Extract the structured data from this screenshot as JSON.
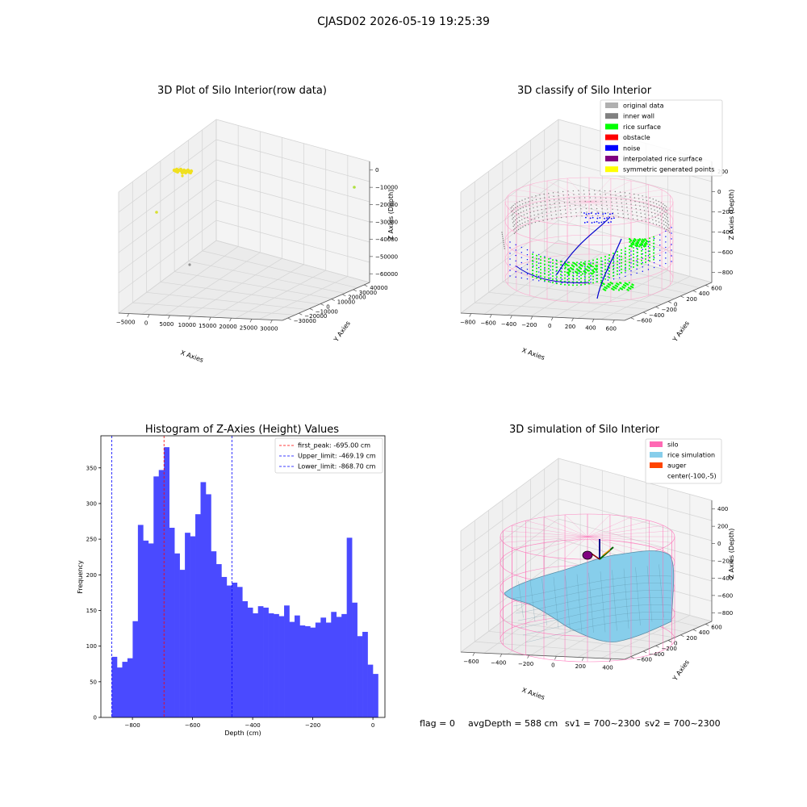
{
  "figure": {
    "suptitle": "CJASD02 2026-05-19 19:25:39",
    "status": {
      "flag": "flag = 0",
      "avg_depth": "avgDepth = 588 cm",
      "sv1": "sv1 = 700~2300",
      "sv2": "sv2 = 700~2300"
    }
  },
  "chart_data": [
    {
      "type": "scatter",
      "panel": "raw",
      "title": "3D Plot of Silo Interior(row data)",
      "xlabel": "X Axies",
      "ylabel": "Y Axies",
      "zlabel": "Z Axies (Depth)",
      "x_ticks": [
        "-5000",
        "0",
        "5000",
        "10000",
        "15000",
        "20000",
        "25000",
        "30000"
      ],
      "y_ticks": [
        "-30000",
        "-20000",
        "-10000",
        "0",
        "10000",
        "20000",
        "30000",
        "40000"
      ],
      "z_ticks": [
        "0",
        "-10000",
        "-20000",
        "-30000",
        "-40000",
        "-50000",
        "-60000"
      ],
      "colors": {
        "points": "#f0e020",
        "outlier": "#b0e040"
      }
    },
    {
      "type": "scatter",
      "panel": "classify",
      "title": "3D classify of Silo Interior",
      "xlabel": "X Axies",
      "ylabel": "Y Axies",
      "zlabel": "Z Axies (Depth)",
      "x_ticks": [
        "-800",
        "-600",
        "-400",
        "-200",
        "0",
        "200",
        "400",
        "600"
      ],
      "y_ticks": [
        "-600",
        "-400",
        "-200",
        "0",
        "200",
        "400",
        "600"
      ],
      "z_ticks": [
        "200",
        "0",
        "-200",
        "-400",
        "-600",
        "-800"
      ],
      "legend": [
        {
          "label": "original data",
          "color": "#b0b0b0"
        },
        {
          "label": "inner wall",
          "color": "#808080"
        },
        {
          "label": "rice surface",
          "color": "#00ff00"
        },
        {
          "label": "obstacle",
          "color": "#ff0000"
        },
        {
          "label": "noise",
          "color": "#0000ff"
        },
        {
          "label": "interpolated rice surface",
          "color": "#800080"
        },
        {
          "label": "symmetric generated points",
          "color": "#ffff00"
        }
      ]
    },
    {
      "type": "bar",
      "panel": "histogram",
      "title": "Histogram of Z-Axies (Height) Values",
      "xlabel": "Depth (cm)",
      "ylabel": "Frequency",
      "xlim": [
        -905,
        40
      ],
      "ylim": [
        0,
        395
      ],
      "x_ticks": [
        -800,
        -600,
        -400,
        -200,
        0
      ],
      "x_tick_labels": [
        "−800",
        "−600",
        "−400",
        "−200",
        "0"
      ],
      "y_ticks": [
        0,
        50,
        100,
        150,
        200,
        250,
        300,
        350
      ],
      "bin_start": -868.7,
      "bin_width": 17.37,
      "values": [
        85,
        70,
        78,
        83,
        135,
        270,
        248,
        244,
        338,
        347,
        379,
        266,
        230,
        207,
        259,
        254,
        285,
        330,
        313,
        233,
        215,
        197,
        185,
        189,
        183,
        163,
        154,
        146,
        156,
        154,
        146,
        145,
        142,
        157,
        134,
        143,
        129,
        128,
        126,
        133,
        140,
        133,
        148,
        141,
        145,
        252,
        161,
        114,
        120,
        74,
        61
      ],
      "bar_color": "#4a4aff",
      "vlines": [
        {
          "x": -695.0,
          "label": "first_peak: -695.00 cm",
          "color": "#ff0000"
        },
        {
          "x": -469.19,
          "label": "Upper_limit: -469.19 cm",
          "color": "#0000ff"
        },
        {
          "x": -868.7,
          "label": "Lower_limit: -868.70 cm",
          "color": "#0000ff"
        }
      ]
    },
    {
      "type": "surface",
      "panel": "simulation",
      "title": "3D simulation of Silo Interior",
      "xlabel": "X Axies",
      "ylabel": "Y Axies",
      "zlabel": "Z Axies (Depth)",
      "x_ticks": [
        "-600",
        "-400",
        "-200",
        "0",
        "200",
        "400"
      ],
      "y_ticks": [
        "-600",
        "-400",
        "-200",
        "0",
        "200",
        "400",
        "600"
      ],
      "z_ticks": [
        "400",
        "200",
        "0",
        "-200",
        "-400",
        "-600",
        "-800"
      ],
      "legend": [
        {
          "label": "silo",
          "color": "#ff69b4"
        },
        {
          "label": "rice simulation",
          "color": "#87ceeb"
        },
        {
          "label": "auger",
          "color": "#ff4500"
        },
        {
          "label": "center(-100,-5)",
          "color": ""
        }
      ]
    }
  ]
}
